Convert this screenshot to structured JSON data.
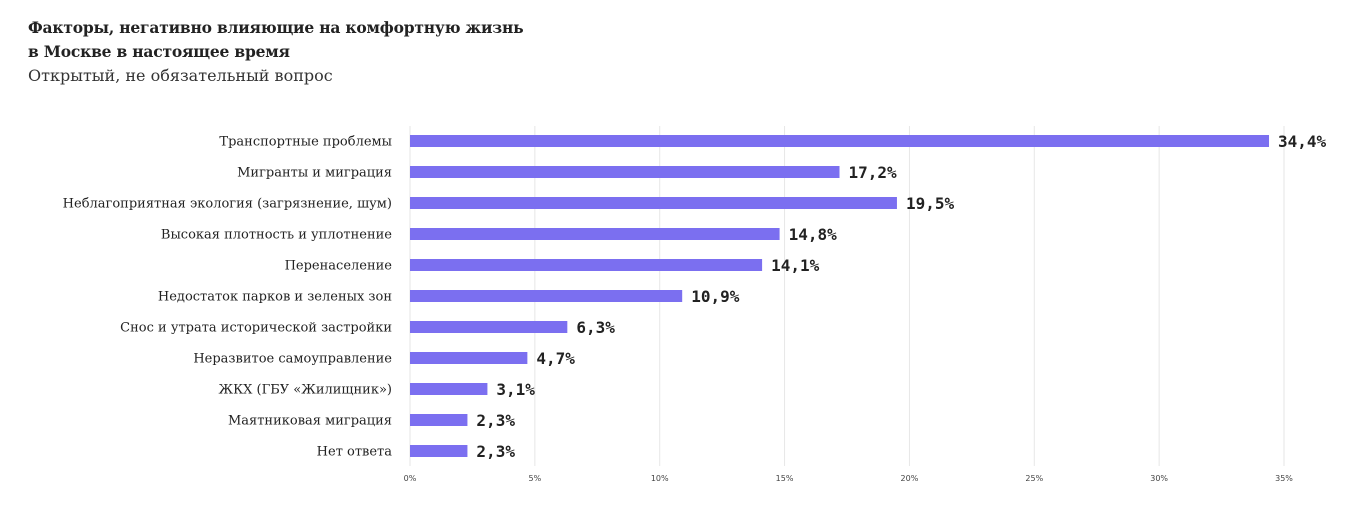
{
  "chart_data": {
    "type": "bar",
    "orientation": "horizontal",
    "title": "Факторы, негативно влияющие на комфортную жизнь",
    "title_line2": "в Москве в настоящее время",
    "subtitle": "Открытый, не обязательный вопрос",
    "categories": [
      "Транспортные проблемы",
      "Мигранты и миграция",
      "Неблагоприятная экология (загрязнение, шум)",
      "Высокая плотность и уплотнение",
      "Перенаселение",
      "Недостаток парков и зеленых зон",
      "Снос и утрата исторической застройки",
      "Неразвитое самоуправление",
      "ЖКХ (ГБУ «Жилищник»)",
      "Маятниковая миграция",
      "Нет ответа"
    ],
    "values": [
      34.4,
      17.2,
      19.5,
      14.8,
      14.1,
      10.9,
      6.3,
      4.7,
      3.1,
      2.3,
      2.3
    ],
    "value_labels": [
      "34,4%",
      "17,2%",
      "19,5%",
      "14,8%",
      "14,1%",
      "10,9%",
      "6,3%",
      "4,7%",
      "3,1%",
      "2,3%",
      "2,3%"
    ],
    "xlim": [
      0,
      35
    ],
    "xticks": [
      0,
      5,
      10,
      15,
      20,
      25,
      30,
      35
    ],
    "xtick_labels": [
      "0%",
      "5%",
      "10%",
      "15%",
      "20%",
      "25%",
      "30%",
      "35%"
    ],
    "grid": true,
    "bar_color": "#7b6ff0"
  }
}
